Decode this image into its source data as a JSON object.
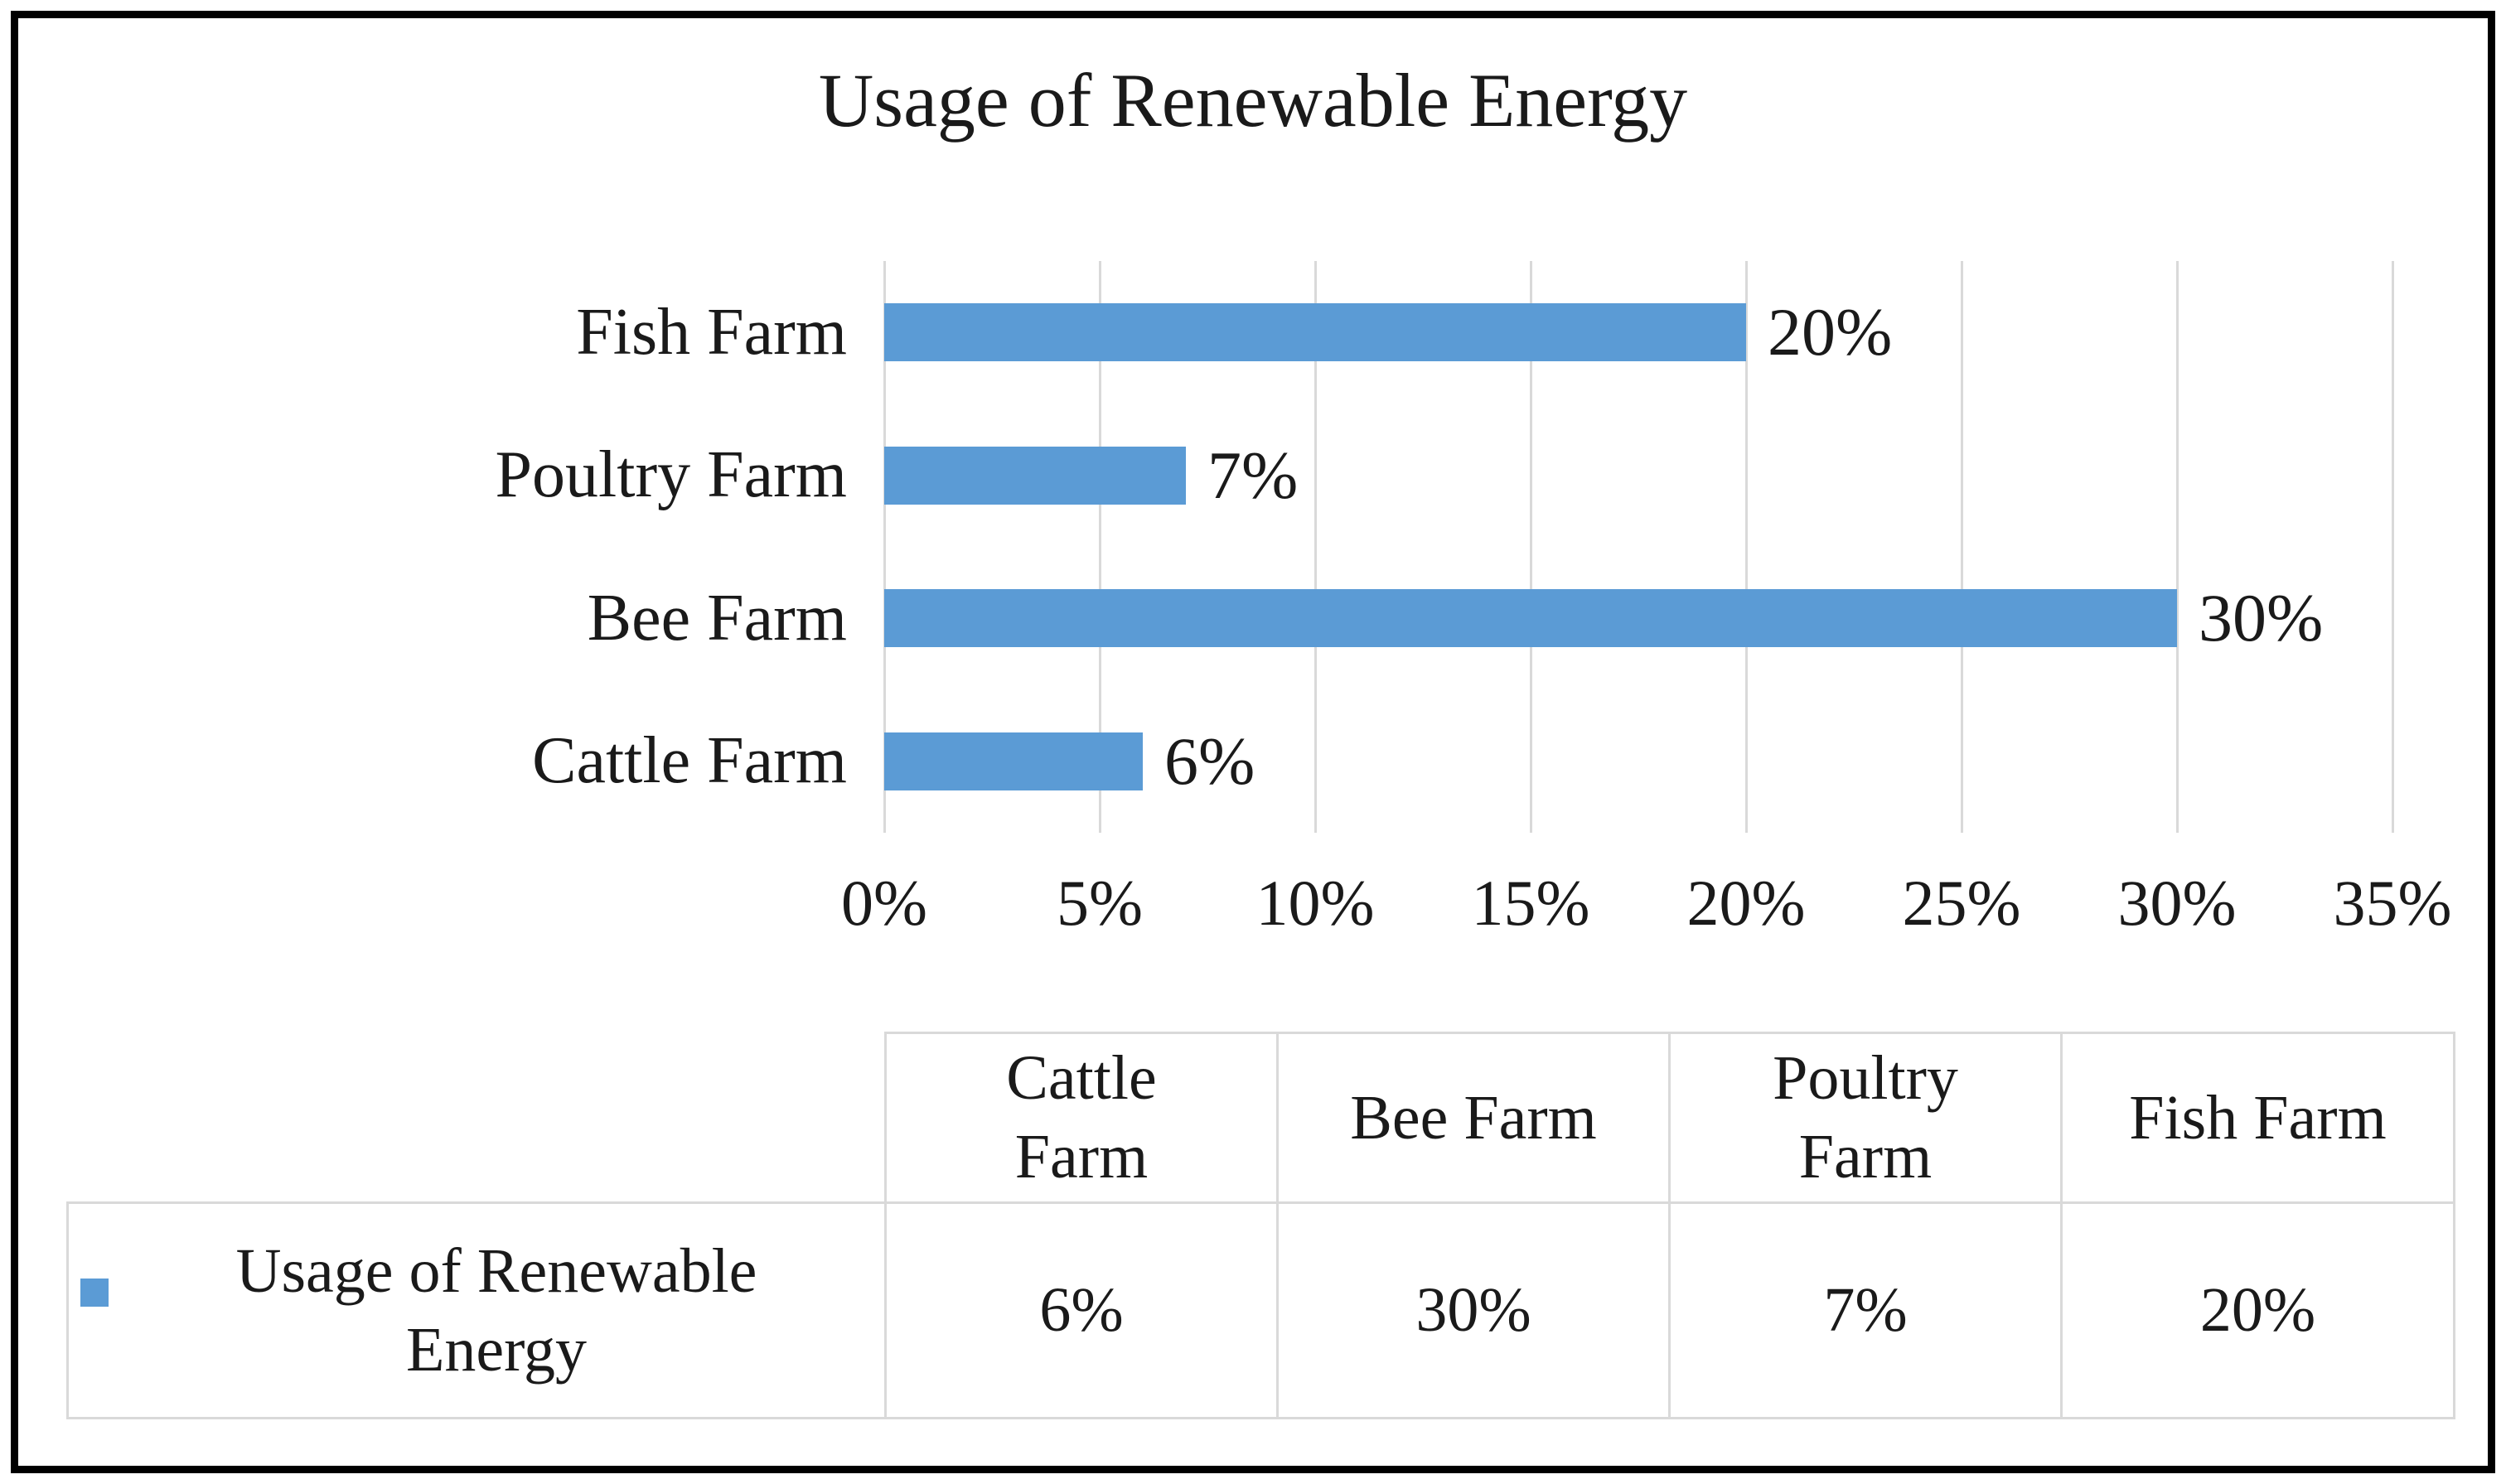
{
  "page": {
    "background_color": "#ffffff",
    "frame_border_color": "#000000"
  },
  "chart_data": {
    "type": "bar",
    "orientation": "horizontal",
    "title": "Usage of Renewable Energy",
    "series_name": "Usage of Renewable Energy",
    "categories_top_to_bottom": [
      "Fish Farm",
      "Poultry Farm",
      "Bee Farm",
      "Cattle Farm"
    ],
    "values_top_to_bottom": [
      20,
      7,
      30,
      6
    ],
    "value_labels_top_to_bottom": [
      "20%",
      "7%",
      "30%",
      "6%"
    ],
    "x_ticks": [
      "0%",
      "5%",
      "10%",
      "15%",
      "20%",
      "25%",
      "30%",
      "35%"
    ],
    "x_tick_values": [
      0,
      5,
      10,
      15,
      20,
      25,
      30,
      35
    ],
    "xlim": [
      0,
      35
    ],
    "grid": true,
    "legend_position": "data-table-row-label",
    "bar_color": "#5b9bd5",
    "gridline_color": "#d9d9d9",
    "text_color": "#1a1a1a",
    "data_table": {
      "corner_cell": "",
      "column_headers": [
        "Cattle\nFarm",
        "Bee Farm",
        "Poultry\nFarm",
        "Fish Farm"
      ],
      "row_label": "Usage of Renewable Energy",
      "row_values": [
        "6%",
        "30%",
        "7%",
        "20%"
      ],
      "border_color": "#d9d9d9"
    }
  }
}
